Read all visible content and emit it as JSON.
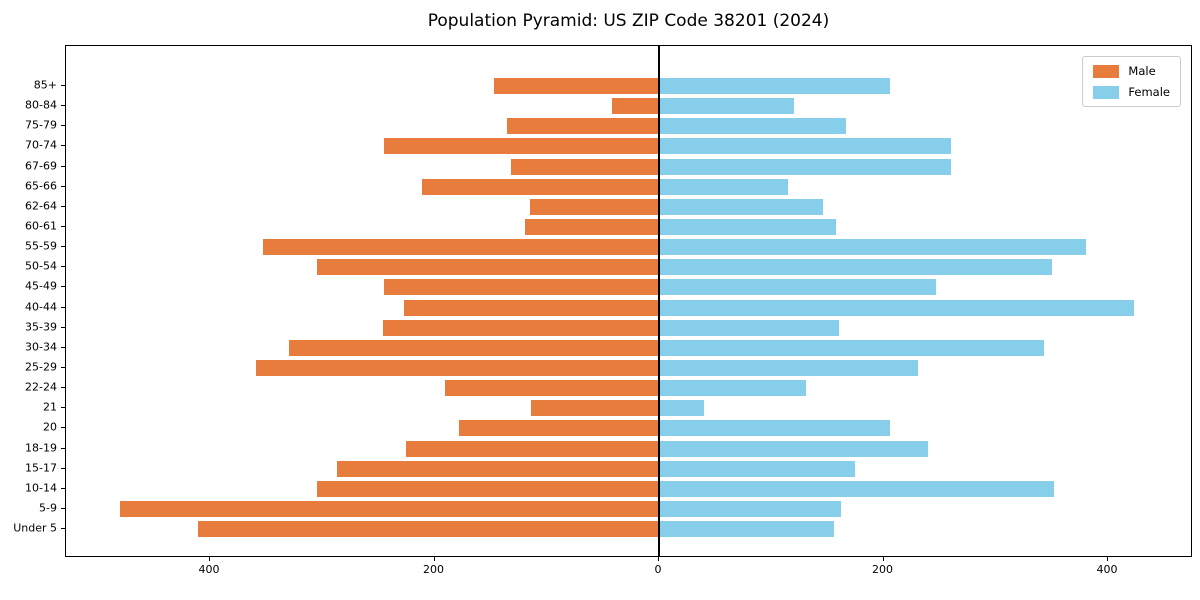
{
  "title": "Population Pyramid: US ZIP Code 38201 (2024)",
  "legend": {
    "male_label": "Male",
    "female_label": "Female"
  },
  "colors": {
    "male": "#E87C3C",
    "female": "#87CEEB",
    "axis": "#000000",
    "legend_border": "#CCCCCC",
    "background": "#FFFFFF"
  },
  "chart_data": {
    "type": "bar",
    "subtype": "population-pyramid",
    "title": "Population Pyramid: US ZIP Code 38201 (2024)",
    "xlabel": "",
    "ylabel": "",
    "grid": false,
    "zero_line": true,
    "legend_position": "upper right",
    "categories_top_to_bottom": [
      "85+",
      "80-84",
      "75-79",
      "70-74",
      "67-69",
      "65-66",
      "62-64",
      "60-61",
      "55-59",
      "50-54",
      "45-49",
      "40-44",
      "35-39",
      "30-34",
      "25-29",
      "22-24",
      "21",
      "20",
      "18-19",
      "15-17",
      "10-14",
      "5-9",
      "Under 5"
    ],
    "series": [
      {
        "name": "Male",
        "side": "left",
        "color": "#E87C3C",
        "plotted_as_negative": true,
        "values": [
          147,
          42,
          135,
          245,
          132,
          211,
          115,
          119,
          353,
          305,
          245,
          227,
          246,
          330,
          359,
          191,
          114,
          178,
          225,
          287,
          305,
          480,
          411
        ]
      },
      {
        "name": "Female",
        "side": "right",
        "color": "#87CEEB",
        "plotted_as_negative": false,
        "values": [
          206,
          120,
          167,
          260,
          260,
          115,
          146,
          158,
          380,
          350,
          247,
          423,
          160,
          343,
          231,
          131,
          40,
          206,
          240,
          175,
          352,
          162,
          156
        ]
      }
    ],
    "x_axis": {
      "tick_values": [
        -400,
        -200,
        0,
        200,
        400
      ],
      "tick_labels": [
        "400",
        "200",
        "0",
        "200",
        "400"
      ],
      "xlim": [
        -527,
        477
      ]
    }
  }
}
